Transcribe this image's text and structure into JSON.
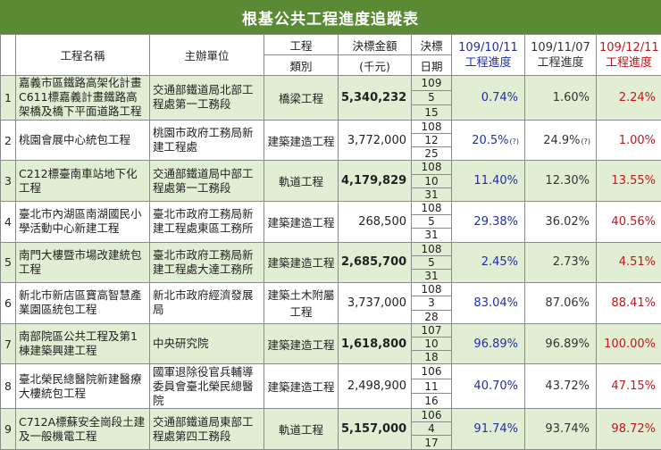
{
  "title": "根基公共工程進度追蹤表",
  "headers": {
    "name": "工程名稱",
    "org": "主辦單位",
    "type1": "工程",
    "type2": "類別",
    "amount1": "決標金額",
    "amount2": "(千元)",
    "award1": "決標",
    "award2": "日期",
    "d1_date": "109/10/11",
    "d1_label": "工程進度",
    "d2_date": "109/11/07",
    "d2_label": "工程進度",
    "d3_date": "109/12/11",
    "d3_label": "工程進度"
  },
  "colors": {
    "title_bg": "#5a8a34",
    "green_row": "#e2eed3",
    "blue": "#1f2fa6",
    "red": "#c0181c"
  },
  "rows": [
    {
      "no": "1",
      "name": "嘉義市區鐵路高架化計畫C611標嘉義計畫鐵路高架橋及橋下平面道路工程",
      "org": "交通部鐵道局北部工程處第一工務段",
      "type": "橋梁工程",
      "amount": "5,340,232",
      "y": "109",
      "m": "5",
      "d": "15",
      "p1": "0.74%",
      "p1n": "",
      "p2": "1.60%",
      "p2n": "",
      "p3": "2.24%"
    },
    {
      "no": "2",
      "name": "桃園會展中心統包工程",
      "org": "桃園市政府工務局新建工程處",
      "type": "建築建造工程",
      "amount": "3,772,000",
      "y": "108",
      "m": "12",
      "d": "25",
      "p1": "20.5%",
      "p1n": "(?)",
      "p2": "24.9%",
      "p2n": "(?)",
      "p3": "1.00%"
    },
    {
      "no": "3",
      "name": "C212標臺南車站地下化工程",
      "org": "交通部鐵道局中部工程處第一工務段",
      "type": "軌道工程",
      "amount": "4,179,829",
      "y": "108",
      "m": "10",
      "d": "31",
      "p1": "11.40%",
      "p1n": "",
      "p2": "12.30%",
      "p2n": "",
      "p3": "13.55%"
    },
    {
      "no": "4",
      "name": "臺北市內湖區南湖國民小學活動中心新建工程",
      "org": "臺北市政府工務局新建工程處東區工務所",
      "type": "建築建造工程",
      "amount": "268,500",
      "y": "108",
      "m": "5",
      "d": "31",
      "p1": "29.38%",
      "p1n": "",
      "p2": "36.02%",
      "p2n": "",
      "p3": "40.56%"
    },
    {
      "no": "5",
      "name": "南門大樓暨市場改建統包工程",
      "org": "臺北市政府工務局新建工程處大達工務所",
      "type": "建築建造工程",
      "amount": "2,685,700",
      "y": "108",
      "m": "5",
      "d": "31",
      "p1": "2.45%",
      "p1n": "",
      "p2": "2.73%",
      "p2n": "",
      "p3": "4.51%"
    },
    {
      "no": "6",
      "name": "新北市新店區寶高智慧產業園區統包工程",
      "org": "新北市政府經濟發展局",
      "type": "建築土木附屬工程",
      "amount": "3,737,000",
      "y": "108",
      "m": "3",
      "d": "28",
      "p1": "83.04%",
      "p1n": "",
      "p2": "87.06%",
      "p2n": "",
      "p3": "88.41%"
    },
    {
      "no": "7",
      "name": "南部院區公共工程及第1棟建築興建工程",
      "org": "中央研究院",
      "type": "建築建造工程",
      "amount": "1,618,800",
      "y": "107",
      "m": "10",
      "d": "18",
      "p1": "96.89%",
      "p1n": "",
      "p2": "96.89%",
      "p2n": "",
      "p3": "100.00%"
    },
    {
      "no": "8",
      "name": "臺北榮民總醫院新建醫療大樓統包工程",
      "org": "國軍退除役官兵輔導委員會臺北榮民總醫院",
      "type": "建築建造工程",
      "amount": "2,498,900",
      "y": "106",
      "m": "11",
      "d": "16",
      "p1": "40.70%",
      "p1n": "",
      "p2": "43.72%",
      "p2n": "",
      "p3": "47.15%"
    },
    {
      "no": "9",
      "name": "C712A標蘇安全崗段土建及一般機電工程",
      "org": "交通部鐵道局東部工程處第四工務段",
      "type": "軌道工程",
      "amount": "5,157,000",
      "y": "106",
      "m": "4",
      "d": "17",
      "p1": "91.74%",
      "p1n": "",
      "p2": "93.74%",
      "p2n": "",
      "p3": "98.72%"
    }
  ]
}
